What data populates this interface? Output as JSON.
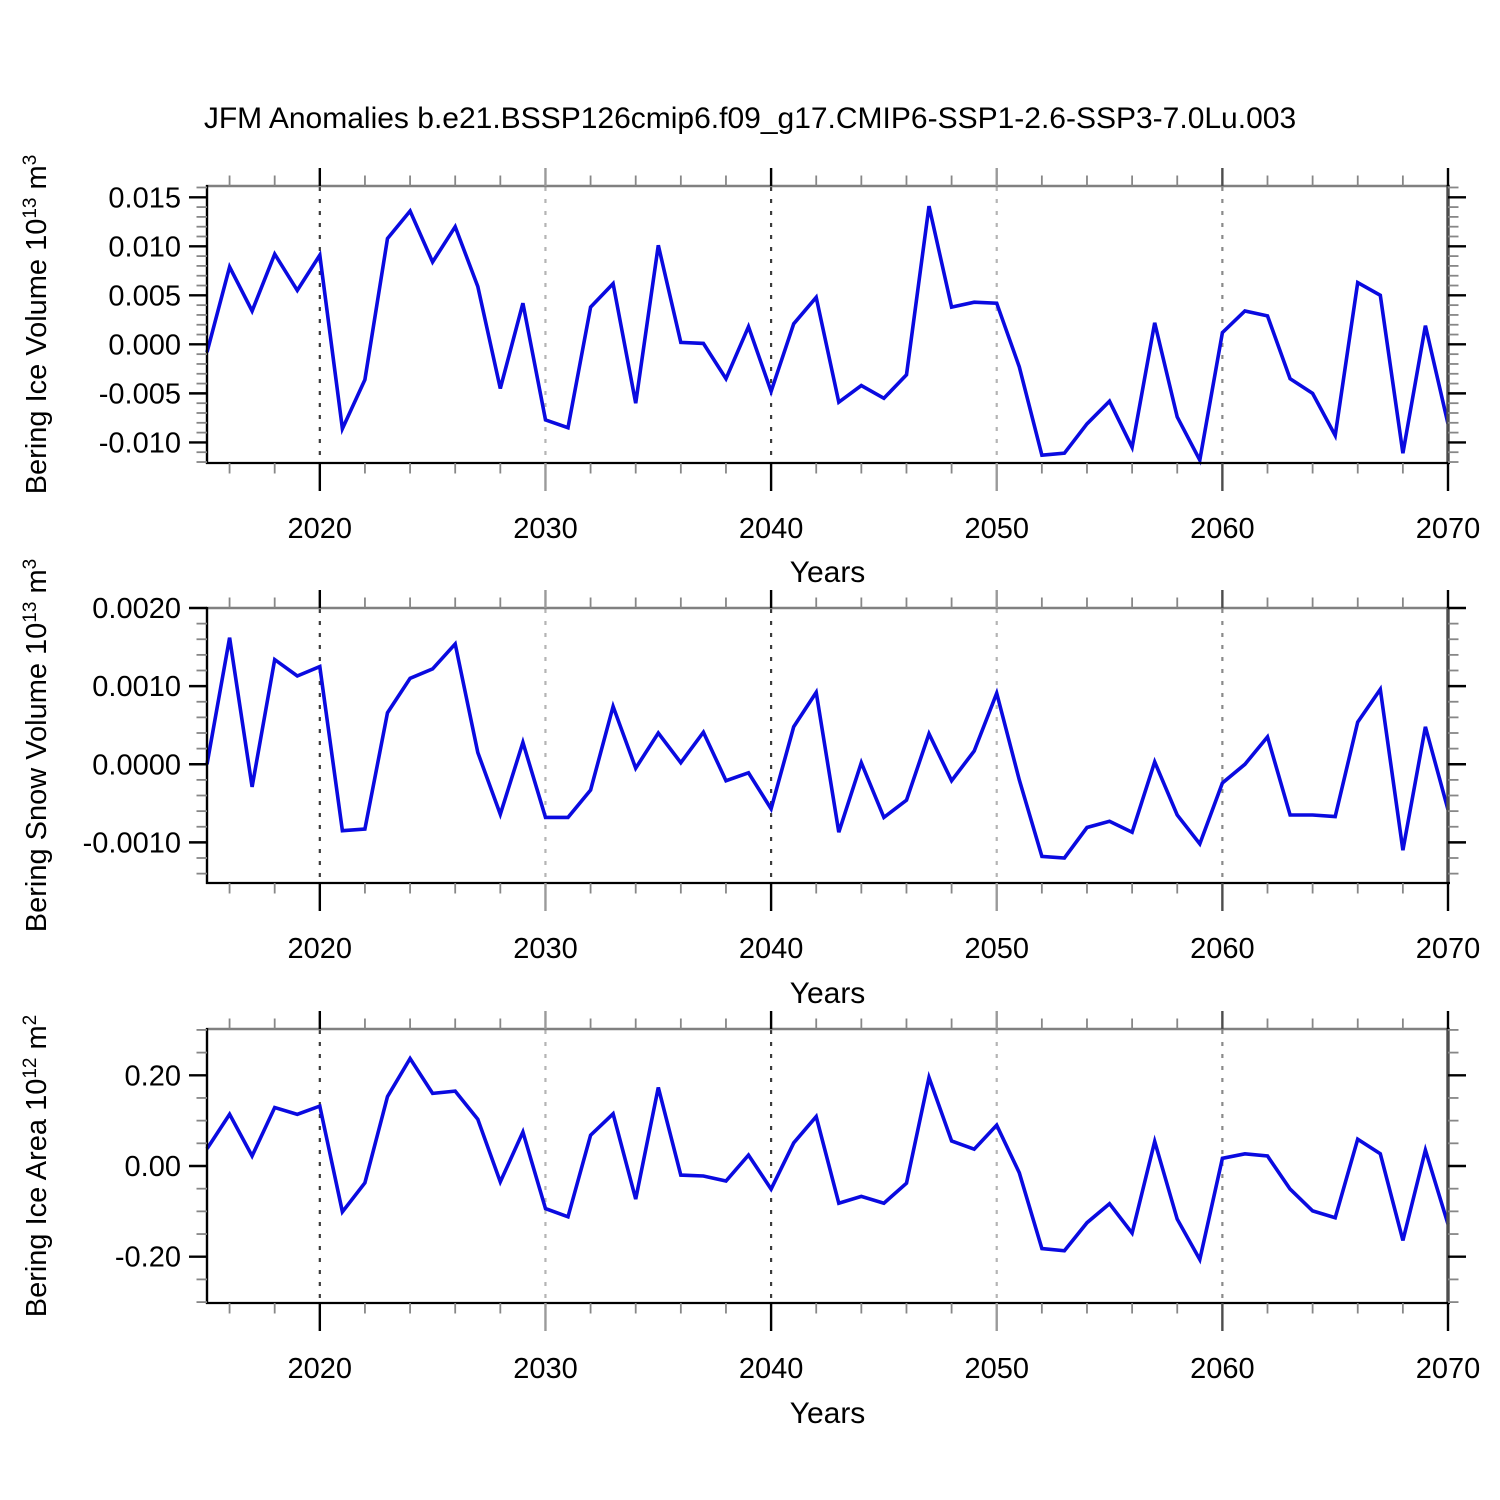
{
  "title": "JFM Anomalies b.e21.BSSP126cmip6.f09_g17.CMIP6-SSP1-2.6-SSP3-7.0Lu.003",
  "colors": {
    "line": "#0a0ae0",
    "axis": "#000000",
    "minor_tick": "#878787",
    "top_border": "#808080",
    "right_border": "#4d4d4d",
    "grid_dark": "#3c3c3c",
    "grid_light": "#b4b4b4",
    "grid_medium": "#8a8a8a",
    "tick_dark": "#000000",
    "tick_light": "#9a9a9a",
    "tick_medium": "#4d4d4d"
  },
  "years": [
    2015,
    2016,
    2017,
    2018,
    2019,
    2020,
    2021,
    2022,
    2023,
    2024,
    2025,
    2026,
    2027,
    2028,
    2029,
    2030,
    2031,
    2032,
    2033,
    2034,
    2035,
    2036,
    2037,
    2038,
    2039,
    2040,
    2041,
    2042,
    2043,
    2044,
    2045,
    2046,
    2047,
    2048,
    2049,
    2050,
    2051,
    2052,
    2053,
    2054,
    2055,
    2056,
    2057,
    2058,
    2059,
    2060,
    2061,
    2062,
    2063,
    2064,
    2065,
    2066,
    2067,
    2068,
    2069,
    2070
  ],
  "chart_data": [
    {
      "type": "line",
      "id": "bering-ice-volume",
      "ylabel_text": "Bering Ice Volume 10^13 m^3",
      "ylabel_segments": [
        {
          "t": "Bering Ice Volume 10",
          "sup": false
        },
        {
          "t": "13",
          "sup": true
        },
        {
          "t": " m",
          "sup": false
        },
        {
          "t": "3",
          "sup": true
        }
      ],
      "xlabel": "Years",
      "xlim": [
        2015,
        2070
      ],
      "ylim": [
        -0.0121,
        0.01615
      ],
      "yticks": [
        {
          "v": 0.015,
          "label": "0.015"
        },
        {
          "v": 0.01,
          "label": "0.010"
        },
        {
          "v": 0.005,
          "label": "0.005"
        },
        {
          "v": 0.0,
          "label": "0.000"
        },
        {
          "v": -0.005,
          "label": "-0.005"
        },
        {
          "v": -0.01,
          "label": "-0.010"
        }
      ],
      "y_minor_step": 0.001,
      "xticks": [
        {
          "v": 2020,
          "label": "2020",
          "shade": "dark"
        },
        {
          "v": 2030,
          "label": "2030",
          "shade": "light"
        },
        {
          "v": 2040,
          "label": "2040",
          "shade": "dark"
        },
        {
          "v": 2050,
          "label": "2050",
          "shade": "light"
        },
        {
          "v": 2060,
          "label": "2060",
          "shade": "medium"
        },
        {
          "v": 2070,
          "label": "2070",
          "shade": "dark"
        }
      ],
      "x_minor_step": 2,
      "gridline_years": [
        {
          "v": 2020,
          "shade": "dark"
        },
        {
          "v": 2030,
          "shade": "light"
        },
        {
          "v": 2040,
          "shade": "dark"
        },
        {
          "v": 2050,
          "shade": "light"
        },
        {
          "v": 2060,
          "shade": "medium"
        }
      ],
      "values": [
        -0.0008,
        0.0079,
        0.0034,
        0.0092,
        0.0055,
        0.0091,
        -0.0086,
        -0.0036,
        0.0108,
        0.0136,
        0.0084,
        0.012,
        0.0059,
        -0.0045,
        0.0042,
        -0.0077,
        -0.0085,
        0.0038,
        0.0062,
        -0.006,
        0.0101,
        0.0002,
        0.0001,
        -0.0035,
        0.0018,
        -0.0048,
        0.0021,
        0.0048,
        -0.0059,
        -0.0042,
        -0.0055,
        -0.0031,
        0.0141,
        0.0038,
        0.0043,
        0.0042,
        -0.0023,
        -0.0113,
        -0.0111,
        -0.0081,
        -0.0058,
        -0.0105,
        0.0022,
        -0.0074,
        -0.0118,
        0.0012,
        0.0034,
        0.0029,
        -0.0035,
        -0.005,
        -0.0093,
        0.0063,
        0.005,
        -0.0111,
        0.0019,
        -0.0081
      ]
    },
    {
      "type": "line",
      "id": "bering-snow-volume",
      "ylabel_text": "Bering Snow Volume 10^13 m^3",
      "ylabel_segments": [
        {
          "t": "Bering Snow Volume 10",
          "sup": false
        },
        {
          "t": "13",
          "sup": true
        },
        {
          "t": " m",
          "sup": false
        },
        {
          "t": "3",
          "sup": true
        }
      ],
      "xlabel": "Years",
      "xlim": [
        2015,
        2070
      ],
      "ylim": [
        -0.00152,
        0.002
      ],
      "yticks": [
        {
          "v": 0.002,
          "label": "0.0020"
        },
        {
          "v": 0.001,
          "label": "0.0010"
        },
        {
          "v": 0.0,
          "label": "0.0000"
        },
        {
          "v": -0.001,
          "label": "-0.0010"
        }
      ],
      "y_minor_step": 0.0002,
      "xticks": [
        {
          "v": 2020,
          "label": "2020",
          "shade": "dark"
        },
        {
          "v": 2030,
          "label": "2030",
          "shade": "light"
        },
        {
          "v": 2040,
          "label": "2040",
          "shade": "dark"
        },
        {
          "v": 2050,
          "label": "2050",
          "shade": "light"
        },
        {
          "v": 2060,
          "label": "2060",
          "shade": "medium"
        },
        {
          "v": 2070,
          "label": "2070",
          "shade": "dark"
        }
      ],
      "x_minor_step": 2,
      "gridline_years": [
        {
          "v": 2020,
          "shade": "dark"
        },
        {
          "v": 2030,
          "shade": "light"
        },
        {
          "v": 2040,
          "shade": "dark"
        },
        {
          "v": 2050,
          "shade": "light"
        },
        {
          "v": 2060,
          "shade": "medium"
        }
      ],
      "values": [
        0.0,
        0.00162,
        -0.00029,
        0.00134,
        0.00113,
        0.00125,
        -0.00085,
        -0.00083,
        0.00066,
        0.0011,
        0.00122,
        0.00154,
        0.00015,
        -0.00064,
        0.00028,
        -0.00068,
        -0.00068,
        -0.00033,
        0.00074,
        -5e-05,
        0.0004,
        2e-05,
        0.00041,
        -0.00021,
        -0.00011,
        -0.00057,
        0.00048,
        0.00092,
        -0.00087,
        2e-05,
        -0.00068,
        -0.00046,
        0.00039,
        -0.00021,
        0.00017,
        0.00091,
        -0.0002,
        -0.00118,
        -0.0012,
        -0.00081,
        -0.00073,
        -0.00087,
        3e-05,
        -0.00065,
        -0.00102,
        -0.00024,
        0.0,
        0.00035,
        -0.00065,
        -0.00065,
        -0.00067,
        0.00054,
        0.00096,
        -0.0011,
        0.00048,
        -0.00058
      ]
    },
    {
      "type": "line",
      "id": "bering-ice-area",
      "ylabel_text": "Bering Ice Area 10^12 m^2",
      "ylabel_segments": [
        {
          "t": "Bering Ice Area 10",
          "sup": false
        },
        {
          "t": "12",
          "sup": true
        },
        {
          "t": " m",
          "sup": false
        },
        {
          "t": "2",
          "sup": true
        }
      ],
      "xlabel": "Years",
      "xlim": [
        2015,
        2070
      ],
      "ylim": [
        -0.302,
        0.302
      ],
      "yticks": [
        {
          "v": 0.2,
          "label": "0.20"
        },
        {
          "v": 0.0,
          "label": "0.00"
        },
        {
          "v": -0.2,
          "label": "-0.20"
        }
      ],
      "y_minor_step": 0.05,
      "xticks": [
        {
          "v": 2020,
          "label": "2020",
          "shade": "dark"
        },
        {
          "v": 2030,
          "label": "2030",
          "shade": "light"
        },
        {
          "v": 2040,
          "label": "2040",
          "shade": "dark"
        },
        {
          "v": 2050,
          "label": "2050",
          "shade": "light"
        },
        {
          "v": 2060,
          "label": "2060",
          "shade": "medium"
        },
        {
          "v": 2070,
          "label": "2070",
          "shade": "dark"
        }
      ],
      "x_minor_step": 2,
      "gridline_years": [
        {
          "v": 2020,
          "shade": "dark"
        },
        {
          "v": 2030,
          "shade": "light"
        },
        {
          "v": 2040,
          "shade": "dark"
        },
        {
          "v": 2050,
          "shade": "light"
        },
        {
          "v": 2060,
          "shade": "medium"
        }
      ],
      "values": [
        0.038,
        0.114,
        0.022,
        0.129,
        0.114,
        0.132,
        -0.101,
        -0.037,
        0.153,
        0.237,
        0.16,
        0.165,
        0.103,
        -0.035,
        0.075,
        -0.094,
        -0.112,
        0.068,
        0.115,
        -0.073,
        0.173,
        -0.02,
        -0.022,
        -0.033,
        0.024,
        -0.051,
        0.051,
        0.109,
        -0.082,
        -0.067,
        -0.082,
        -0.038,
        0.195,
        0.055,
        0.037,
        0.09,
        -0.015,
        -0.182,
        -0.187,
        -0.125,
        -0.083,
        -0.148,
        0.054,
        -0.117,
        -0.206,
        0.017,
        0.027,
        0.022,
        -0.051,
        -0.099,
        -0.114,
        0.059,
        0.027,
        -0.164,
        0.035,
        -0.128
      ]
    }
  ]
}
